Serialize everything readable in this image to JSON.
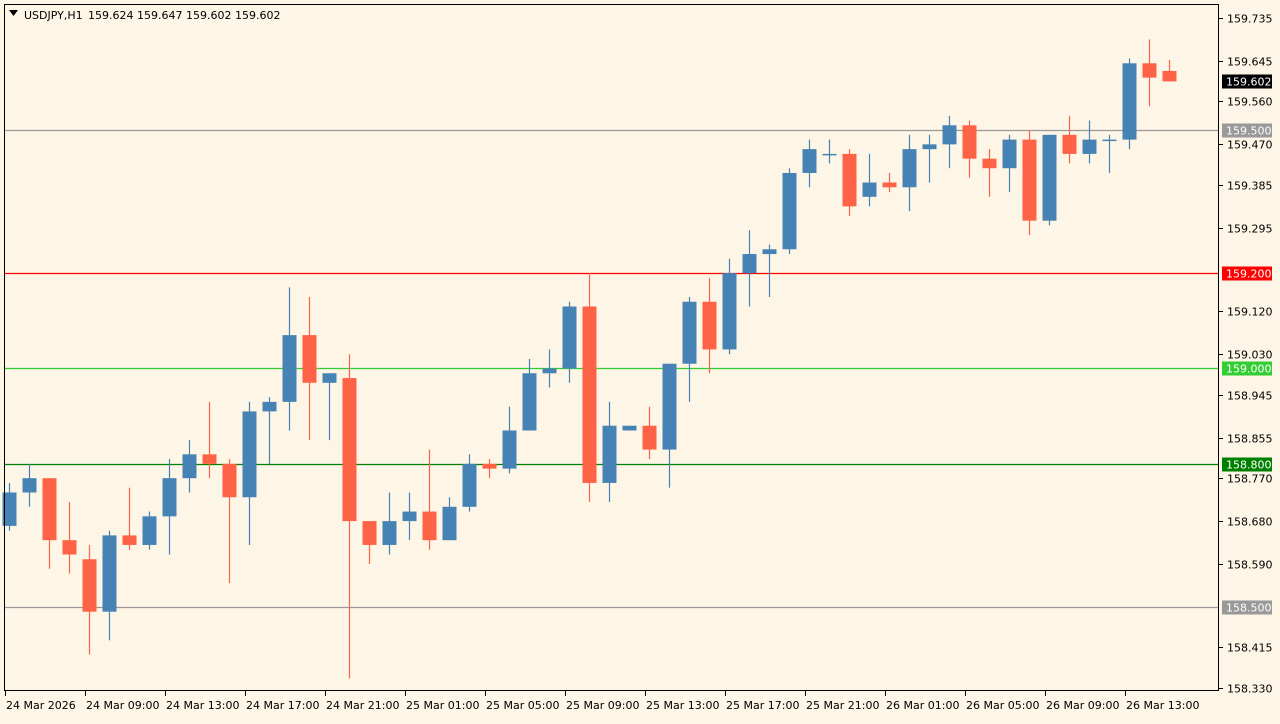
{
  "header": {
    "symbol": "USDJPY,H1",
    "ohlc": "159.624 159.647 159.602 159.602"
  },
  "colors": {
    "background": "#fdf5e6",
    "bull": "#4682b4",
    "bear": "#ff6347",
    "frame": "#000000",
    "text": "#000000",
    "level_gray": "#999999",
    "level_red": "#ff0000",
    "level_lime": "#32cd32",
    "level_green": "#008000"
  },
  "chart_data": {
    "type": "candlestick",
    "ylim": [
      158.33,
      159.77
    ],
    "y_ticks": [
      "159.735",
      "159.645",
      "159.560",
      "159.470",
      "159.385",
      "159.295",
      "159.120",
      "159.030",
      "158.945",
      "158.855",
      "158.770",
      "158.680",
      "158.590",
      "158.415",
      "158.330"
    ],
    "x_ticks": [
      {
        "label": "24 Mar 2026",
        "index": 0
      },
      {
        "label": "24 Mar 09:00",
        "index": 4
      },
      {
        "label": "24 Mar 13:00",
        "index": 8
      },
      {
        "label": "24 Mar 17:00",
        "index": 12
      },
      {
        "label": "24 Mar 21:00",
        "index": 16
      },
      {
        "label": "25 Mar 01:00",
        "index": 20
      },
      {
        "label": "25 Mar 05:00",
        "index": 24
      },
      {
        "label": "25 Mar 09:00",
        "index": 28
      },
      {
        "label": "25 Mar 13:00",
        "index": 32
      },
      {
        "label": "25 Mar 17:00",
        "index": 36
      },
      {
        "label": "25 Mar 21:00",
        "index": 40
      },
      {
        "label": "26 Mar 01:00",
        "index": 44
      },
      {
        "label": "26 Mar 05:00",
        "index": 48
      },
      {
        "label": "26 Mar 09:00",
        "index": 52
      },
      {
        "label": "26 Mar 13:00",
        "index": 56
      }
    ],
    "current_price": "159.602",
    "levels": [
      {
        "value": 159.5,
        "label": "159.500",
        "color": "#999999"
      },
      {
        "value": 159.2,
        "label": "159.200",
        "color": "#ff0000"
      },
      {
        "value": 159.0,
        "label": "159.000",
        "color": "#32cd32"
      },
      {
        "value": 158.8,
        "label": "158.800",
        "color": "#008000"
      },
      {
        "value": 158.5,
        "label": "158.500",
        "color": "#999999"
      }
    ],
    "candles": [
      {
        "o": 158.67,
        "h": 158.76,
        "l": 158.66,
        "c": 158.74
      },
      {
        "o": 158.74,
        "h": 158.8,
        "l": 158.71,
        "c": 158.77
      },
      {
        "o": 158.77,
        "h": 158.77,
        "l": 158.58,
        "c": 158.64
      },
      {
        "o": 158.64,
        "h": 158.72,
        "l": 158.57,
        "c": 158.61
      },
      {
        "o": 158.6,
        "h": 158.63,
        "l": 158.4,
        "c": 158.49
      },
      {
        "o": 158.49,
        "h": 158.66,
        "l": 158.43,
        "c": 158.65
      },
      {
        "o": 158.65,
        "h": 158.75,
        "l": 158.62,
        "c": 158.63
      },
      {
        "o": 158.63,
        "h": 158.7,
        "l": 158.62,
        "c": 158.69
      },
      {
        "o": 158.69,
        "h": 158.81,
        "l": 158.61,
        "c": 158.77
      },
      {
        "o": 158.77,
        "h": 158.85,
        "l": 158.74,
        "c": 158.82
      },
      {
        "o": 158.82,
        "h": 158.93,
        "l": 158.77,
        "c": 158.8
      },
      {
        "o": 158.8,
        "h": 158.81,
        "l": 158.55,
        "c": 158.73
      },
      {
        "o": 158.73,
        "h": 158.93,
        "l": 158.63,
        "c": 158.91
      },
      {
        "o": 158.91,
        "h": 158.94,
        "l": 158.8,
        "c": 158.93
      },
      {
        "o": 158.93,
        "h": 159.17,
        "l": 158.87,
        "c": 159.07
      },
      {
        "o": 159.07,
        "h": 159.15,
        "l": 158.85,
        "c": 158.97
      },
      {
        "o": 158.97,
        "h": 158.99,
        "l": 158.85,
        "c": 158.99
      },
      {
        "o": 158.98,
        "h": 159.03,
        "l": 158.35,
        "c": 158.68
      },
      {
        "o": 158.68,
        "h": 158.68,
        "l": 158.59,
        "c": 158.63
      },
      {
        "o": 158.63,
        "h": 158.74,
        "l": 158.61,
        "c": 158.68
      },
      {
        "o": 158.68,
        "h": 158.74,
        "l": 158.64,
        "c": 158.7
      },
      {
        "o": 158.7,
        "h": 158.83,
        "l": 158.62,
        "c": 158.64
      },
      {
        "o": 158.64,
        "h": 158.73,
        "l": 158.64,
        "c": 158.71
      },
      {
        "o": 158.71,
        "h": 158.82,
        "l": 158.7,
        "c": 158.8
      },
      {
        "o": 158.8,
        "h": 158.81,
        "l": 158.77,
        "c": 158.79
      },
      {
        "o": 158.79,
        "h": 158.92,
        "l": 158.78,
        "c": 158.87
      },
      {
        "o": 158.87,
        "h": 159.02,
        "l": 158.87,
        "c": 158.99
      },
      {
        "o": 158.99,
        "h": 159.04,
        "l": 158.96,
        "c": 159.0
      },
      {
        "o": 159.0,
        "h": 159.14,
        "l": 158.97,
        "c": 159.13
      },
      {
        "o": 159.13,
        "h": 159.2,
        "l": 158.72,
        "c": 158.76
      },
      {
        "o": 158.76,
        "h": 158.93,
        "l": 158.72,
        "c": 158.88
      },
      {
        "o": 158.87,
        "h": 158.88,
        "l": 158.87,
        "c": 158.88
      },
      {
        "o": 158.88,
        "h": 158.92,
        "l": 158.81,
        "c": 158.83
      },
      {
        "o": 158.83,
        "h": 159.01,
        "l": 158.75,
        "c": 159.01
      },
      {
        "o": 159.01,
        "h": 159.15,
        "l": 158.93,
        "c": 159.14
      },
      {
        "o": 159.14,
        "h": 159.19,
        "l": 158.99,
        "c": 159.04
      },
      {
        "o": 159.04,
        "h": 159.23,
        "l": 159.03,
        "c": 159.2
      },
      {
        "o": 159.2,
        "h": 159.29,
        "l": 159.13,
        "c": 159.24
      },
      {
        "o": 159.24,
        "h": 159.26,
        "l": 159.15,
        "c": 159.25
      },
      {
        "o": 159.25,
        "h": 159.42,
        "l": 159.24,
        "c": 159.41
      },
      {
        "o": 159.41,
        "h": 159.48,
        "l": 159.38,
        "c": 159.46
      },
      {
        "o": 159.45,
        "h": 159.48,
        "l": 159.43,
        "c": 159.45
      },
      {
        "o": 159.45,
        "h": 159.46,
        "l": 159.32,
        "c": 159.34
      },
      {
        "o": 159.36,
        "h": 159.45,
        "l": 159.34,
        "c": 159.39
      },
      {
        "o": 159.39,
        "h": 159.41,
        "l": 159.37,
        "c": 159.38
      },
      {
        "o": 159.38,
        "h": 159.49,
        "l": 159.33,
        "c": 159.46
      },
      {
        "o": 159.46,
        "h": 159.49,
        "l": 159.39,
        "c": 159.47
      },
      {
        "o": 159.47,
        "h": 159.53,
        "l": 159.42,
        "c": 159.51
      },
      {
        "o": 159.51,
        "h": 159.52,
        "l": 159.4,
        "c": 159.44
      },
      {
        "o": 159.44,
        "h": 159.46,
        "l": 159.36,
        "c": 159.42
      },
      {
        "o": 159.42,
        "h": 159.49,
        "l": 159.37,
        "c": 159.48
      },
      {
        "o": 159.48,
        "h": 159.5,
        "l": 159.28,
        "c": 159.31
      },
      {
        "o": 159.31,
        "h": 159.49,
        "l": 159.3,
        "c": 159.49
      },
      {
        "o": 159.49,
        "h": 159.53,
        "l": 159.43,
        "c": 159.45
      },
      {
        "o": 159.45,
        "h": 159.52,
        "l": 159.43,
        "c": 159.48
      },
      {
        "o": 159.48,
        "h": 159.49,
        "l": 159.41,
        "c": 159.48
      },
      {
        "o": 159.48,
        "h": 159.65,
        "l": 159.46,
        "c": 159.64
      },
      {
        "o": 159.64,
        "h": 159.69,
        "l": 159.55,
        "c": 159.61
      },
      {
        "o": 159.624,
        "h": 159.647,
        "l": 159.602,
        "c": 159.602
      }
    ]
  }
}
